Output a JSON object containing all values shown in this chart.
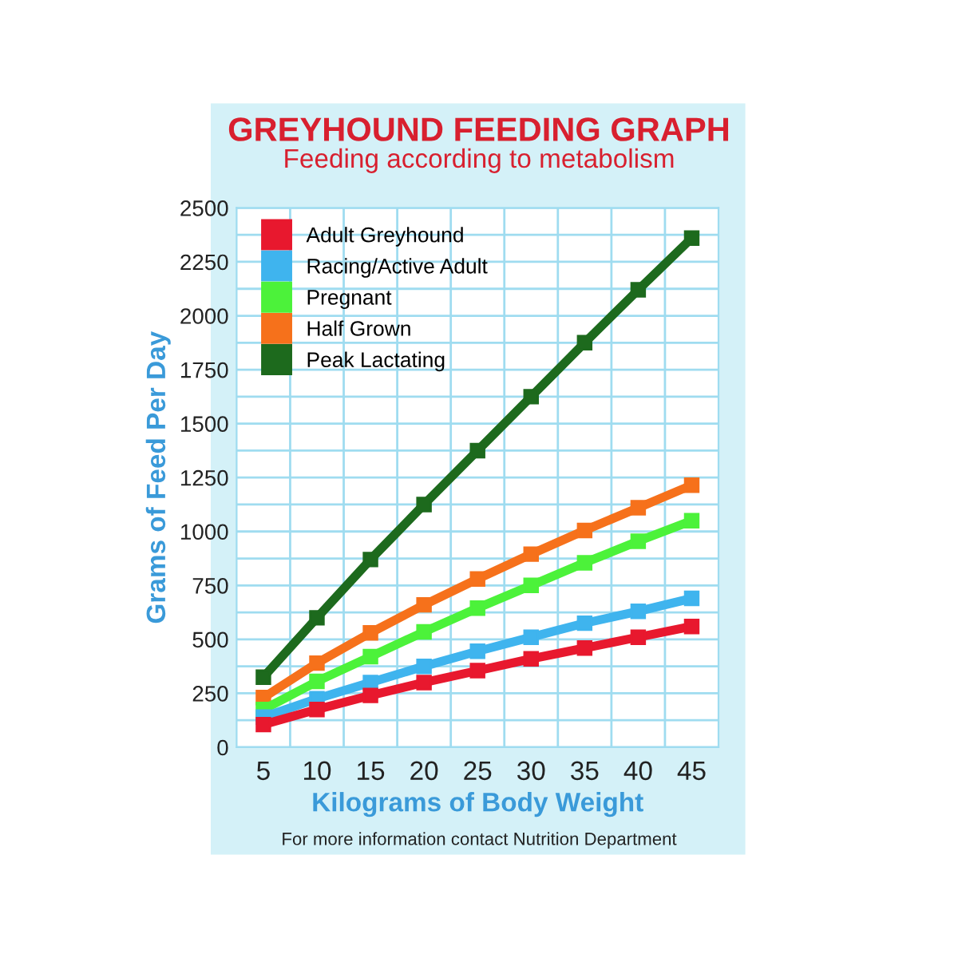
{
  "chart_data": {
    "type": "line",
    "title": "GREYHOUND FEEDING GRAPH",
    "subtitle": "Feeding according to metabolism",
    "xlabel": "Kilograms of Body Weight",
    "ylabel": "Grams of Feed Per Day",
    "annotations": [
      "For more information contact Nutrition Department"
    ],
    "categories": [
      "5",
      "10",
      "15",
      "20",
      "25",
      "30",
      "35",
      "40",
      "45"
    ],
    "series": [
      {
        "name": "Adult Greyhound",
        "color": "#e8182e",
        "values": [
          105,
          175,
          240,
          300,
          355,
          410,
          460,
          510,
          560
        ]
      },
      {
        "name": "Racing/Active Adult",
        "color": "#3fb4ee",
        "values": [
          140,
          225,
          300,
          375,
          445,
          510,
          575,
          630,
          690
        ]
      },
      {
        "name": "Pregnant",
        "color": "#4cf23a",
        "values": [
          175,
          305,
          420,
          535,
          645,
          750,
          855,
          955,
          1050
        ]
      },
      {
        "name": "Half Grown",
        "color": "#f6711b",
        "values": [
          230,
          390,
          530,
          660,
          780,
          895,
          1005,
          1110,
          1215
        ]
      },
      {
        "name": "Peak Lactating",
        "color": "#1d6a1d",
        "values": [
          325,
          600,
          870,
          1125,
          1375,
          1625,
          1875,
          2120,
          2360
        ]
      }
    ],
    "ylim": [
      0,
      2500
    ],
    "yticks": [
      0,
      {
        "value": 125,
        "label": null
      },
      250,
      {
        "value": 375,
        "label": null
      },
      500,
      {
        "value": 625,
        "label": null
      },
      750,
      {
        "value": 875,
        "label": null
      },
      1000,
      {
        "value": 1125,
        "label": null
      },
      1250,
      {
        "value": 1375,
        "label": null
      },
      1500,
      {
        "value": 1625,
        "label": null
      },
      1750,
      {
        "value": 1875,
        "label": null
      },
      2000,
      {
        "value": 2125,
        "label": null
      },
      2250,
      {
        "value": 2375,
        "label": null
      },
      2500
    ],
    "grid": true,
    "legend": "top left",
    "marker": "square",
    "line_style": "solid"
  }
}
